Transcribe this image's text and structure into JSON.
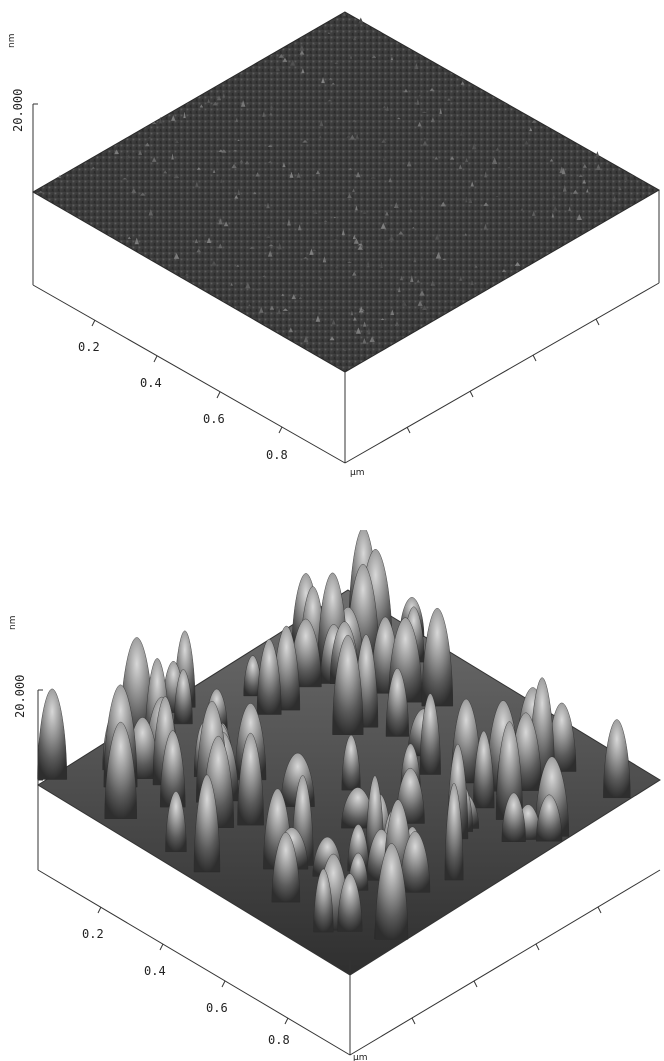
{
  "panels": [
    {
      "id": "top",
      "z_unit": "nm",
      "z_tick": "20.000",
      "xy_unit": "µm",
      "x_ticks": [
        "0.2",
        "0.4",
        "0.6",
        "0.8"
      ],
      "surface": "smooth fine-grained",
      "fill_color": "#3c3c3c"
    },
    {
      "id": "bottom",
      "z_unit": "nm",
      "z_tick": "20.000",
      "xy_unit": "µm",
      "x_ticks": [
        "0.2",
        "0.4",
        "0.6",
        "0.8"
      ],
      "surface": "rough peaked",
      "fill_color": "#6a6a6a"
    }
  ]
}
